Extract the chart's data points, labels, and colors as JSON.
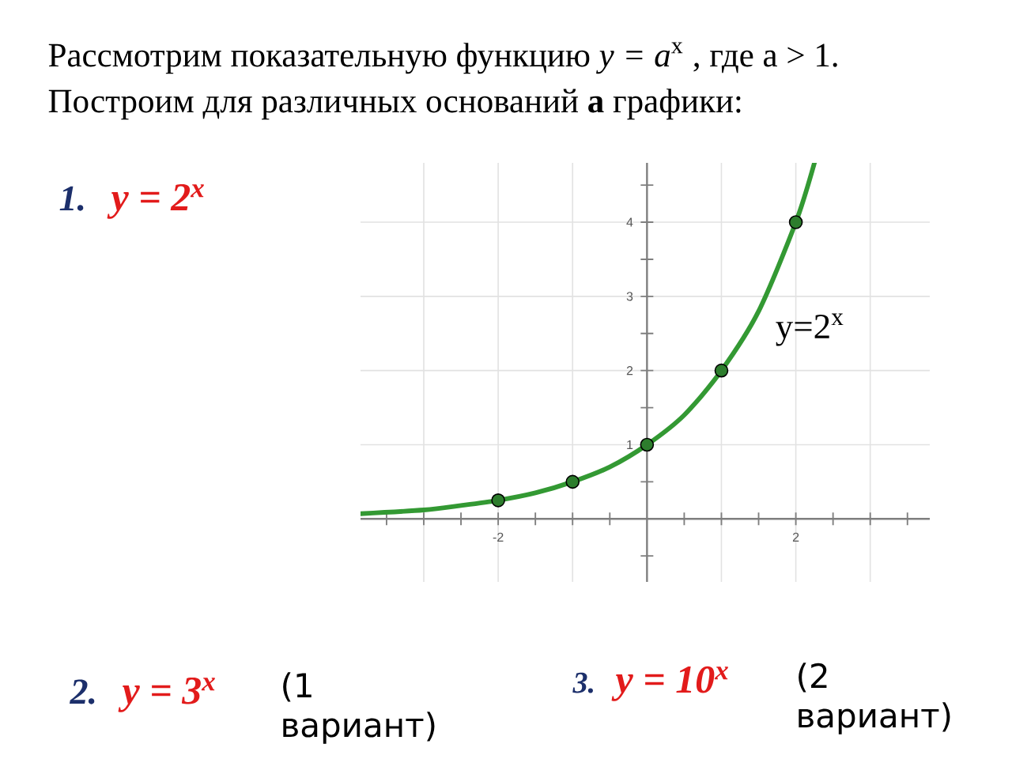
{
  "chart_data": {
    "type": "line",
    "title": "Рассмотрим показательную функцию *y = a*$^{x}$ , где a > 1.",
    "subtitle": "Построим для различных оснований **a** графики:",
    "annotations": [
      "1.",
      "y = 2$^{x}$",
      "2.",
      "y = 3$^{x}$",
      "(1 вариант)",
      "3.",
      "y = 10$^{x}$",
      "(2 вариант)"
    ],
    "series": [
      {
        "name": "y=2$^{x}$",
        "color": "#339933",
        "x": [
          -3.85,
          -3,
          -2.5,
          -2,
          -1.5,
          -1,
          -0.5,
          0,
          0.5,
          1,
          1.5,
          2,
          2.25
        ],
        "values": [
          0.07,
          0.12,
          0.18,
          0.25,
          0.35,
          0.5,
          0.7,
          1,
          1.4,
          2,
          2.8,
          4,
          4.8
        ]
      },
      {
        "type": "scatter",
        "marker": "circle",
        "color": "#2d7d2d",
        "x": [
          -2,
          -1,
          0,
          1,
          2
        ],
        "values": [
          0.25,
          0.5,
          1,
          2,
          4
        ]
      }
    ],
    "xlim": [
      -3.85,
      3.8
    ],
    "ylim": [
      -0.85,
      4.8
    ],
    "xticks": [
      {
        "value": -3.5,
        "label": null
      },
      {
        "value": -3,
        "label": null
      },
      {
        "value": -2.5,
        "label": null
      },
      -2,
      {
        "value": -1.5,
        "label": null
      },
      {
        "value": -1,
        "label": null
      },
      {
        "value": -0.5,
        "label": null
      },
      {
        "value": 0.5,
        "label": null
      },
      {
        "value": 1,
        "label": null
      },
      {
        "value": 1.5,
        "label": null
      },
      2,
      {
        "value": 2.5,
        "label": null
      },
      {
        "value": 3,
        "label": null
      },
      {
        "value": 3.5,
        "label": null
      }
    ],
    "yticks": [
      {
        "value": -0.5,
        "label": null
      },
      {
        "value": 0.5,
        "label": null
      },
      1,
      {
        "value": 1.5,
        "label": null
      },
      2,
      {
        "value": 2.5,
        "label": null
      },
      3,
      {
        "value": 3.5,
        "label": null
      },
      4,
      {
        "value": 4.5,
        "label": null
      }
    ],
    "grid": true
  }
}
